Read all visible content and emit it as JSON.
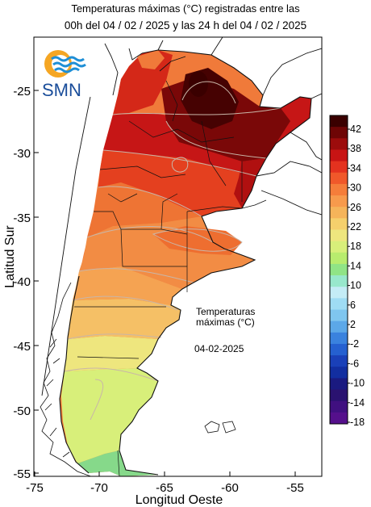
{
  "title_line1": "Temperaturas máximas (°C) registradas entre las",
  "title_line2": "00h del 04 / 02 / 2025 y las 24 h del 04 / 02 / 2025",
  "logo": {
    "text": "SMN",
    "icon": "smn-sun-waves-icon",
    "colors": {
      "sun": "#f5a623",
      "waves": "#1f8fd6",
      "text": "#1a4d9a"
    }
  },
  "axes": {
    "x_label": "Longitud Oeste",
    "y_label": "Latitud Sur",
    "x_ticks": [
      "-75",
      "-70",
      "-65",
      "-60",
      "-55"
    ],
    "y_ticks": [
      "-25",
      "-30",
      "-35",
      "-40",
      "-45",
      "-50",
      "-55"
    ],
    "xlim": [
      -75,
      -52.8
    ],
    "ylim": [
      -55.4,
      -20.5
    ]
  },
  "annotation": {
    "line1": "Temperaturas",
    "line2": "máximas (°C)",
    "date": "04-02-2025"
  },
  "legend": {
    "labels": [
      "42",
      "38",
      "34",
      "30",
      "26",
      "22",
      "18",
      "14",
      "10",
      "6",
      "2",
      "-2",
      "-6",
      "-10",
      "-14",
      "-18"
    ],
    "colors": [
      "#3a0000",
      "#6e0505",
      "#9c0c0c",
      "#c81414",
      "#e4321f",
      "#f0582a",
      "#f57d3a",
      "#f79a4c",
      "#f5b45a",
      "#f5d06c",
      "#eee67e",
      "#d8ef7a",
      "#b8ec6e",
      "#90e486",
      "#98e8cc",
      "#c4ecf6",
      "#9fdcf4",
      "#7fc6ef",
      "#5ca8e8",
      "#3a82de",
      "#2560d0",
      "#1a40b8",
      "#122ea0",
      "#1a1a80",
      "#2a1270",
      "#401080",
      "#55108c"
    ]
  }
}
